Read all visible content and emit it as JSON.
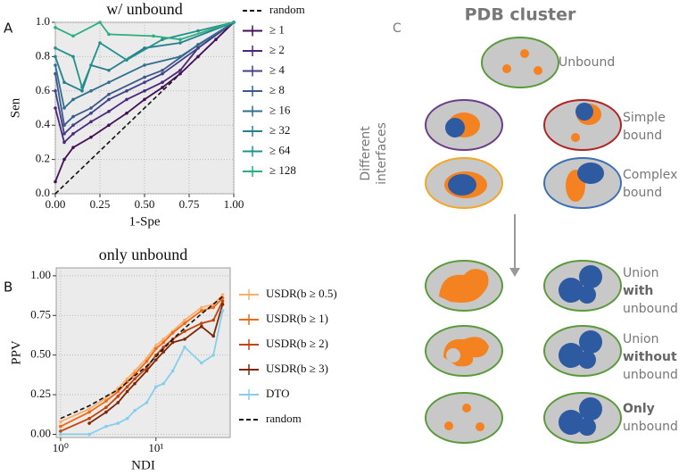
{
  "chart_data": [
    {
      "type": "line",
      "panel_label": "A",
      "title": "w/ unbound",
      "xlabel": "1-Spe",
      "ylabel": "Sen",
      "grid": true,
      "xlim": [
        0,
        1
      ],
      "ylim": [
        0,
        1
      ],
      "xticks": [
        {
          "value": 0,
          "label": "0.00"
        },
        {
          "value": 0.25,
          "label": "0.25"
        },
        {
          "value": 0.5,
          "label": "0.50"
        },
        {
          "value": 0.75,
          "label": "0.75"
        },
        {
          "value": 1,
          "label": "1.00"
        }
      ],
      "yticks": [
        {
          "value": 0,
          "label": "0.0"
        },
        0.2,
        0.4,
        0.6,
        0.8,
        {
          "value": 1,
          "label": "1.0"
        }
      ],
      "series": [
        {
          "name": "random",
          "color": "#111111",
          "dash": true,
          "x": [
            0,
            1
          ],
          "values": [
            0,
            1
          ]
        },
        {
          "name": "≥ 1",
          "color": "#440f56",
          "x": [
            0,
            0.05,
            0.1,
            0.2,
            0.3,
            0.4,
            0.5,
            0.6,
            0.7,
            0.8,
            0.9,
            1
          ],
          "values": [
            0.07,
            0.2,
            0.27,
            0.33,
            0.4,
            0.47,
            0.55,
            0.62,
            0.7,
            0.8,
            0.9,
            1
          ]
        },
        {
          "name": "≥ 2",
          "color": "#48287a",
          "x": [
            0,
            0.05,
            0.1,
            0.2,
            0.3,
            0.4,
            0.5,
            0.6,
            0.7,
            0.8,
            1
          ],
          "values": [
            0.5,
            0.3,
            0.35,
            0.42,
            0.48,
            0.55,
            0.6,
            0.65,
            0.72,
            0.85,
            1
          ]
        },
        {
          "name": "≥ 4",
          "color": "#433f86",
          "x": [
            0,
            0.05,
            0.1,
            0.2,
            0.3,
            0.4,
            0.5,
            0.6,
            0.8,
            1
          ],
          "values": [
            0.6,
            0.35,
            0.4,
            0.47,
            0.55,
            0.6,
            0.65,
            0.7,
            0.85,
            1
          ]
        },
        {
          "name": "≥ 8",
          "color": "#3a5a8c",
          "x": [
            0,
            0.05,
            0.1,
            0.2,
            0.3,
            0.5,
            0.6,
            0.8,
            1
          ],
          "values": [
            0.7,
            0.4,
            0.45,
            0.5,
            0.58,
            0.68,
            0.72,
            0.87,
            1
          ]
        },
        {
          "name": "≥ 16",
          "color": "#2f6e8e",
          "x": [
            0,
            0.05,
            0.1,
            0.2,
            0.3,
            0.5,
            0.7,
            1
          ],
          "values": [
            0.75,
            0.5,
            0.55,
            0.6,
            0.65,
            0.75,
            0.8,
            1
          ]
        },
        {
          "name": "≥ 32",
          "color": "#277f8e",
          "x": [
            0,
            0.05,
            0.15,
            0.2,
            0.3,
            0.5,
            0.7,
            1
          ],
          "values": [
            0.8,
            0.65,
            0.6,
            0.75,
            0.72,
            0.85,
            0.88,
            1
          ]
        },
        {
          "name": "≥ 64",
          "color": "#20928c",
          "x": [
            0,
            0.1,
            0.15,
            0.25,
            0.4,
            0.6,
            0.8,
            1
          ],
          "values": [
            0.85,
            0.8,
            0.62,
            0.88,
            0.78,
            0.9,
            0.95,
            1
          ]
        },
        {
          "name": "≥ 128",
          "color": "#29af7f",
          "x": [
            0,
            0.1,
            0.25,
            0.3,
            0.55,
            0.7,
            1
          ],
          "values": [
            0.97,
            0.92,
            1,
            0.93,
            0.92,
            0.9,
            1
          ]
        }
      ]
    },
    {
      "type": "line",
      "panel_label": "B",
      "title": "only unbound",
      "xlabel": "NDI",
      "ylabel": "PPV",
      "grid": true,
      "logx": true,
      "xlim": [
        0.9,
        60
      ],
      "ylim": [
        -0.02,
        1.05
      ],
      "xticks": [
        {
          "value": 1,
          "label": "10⁰"
        },
        {
          "value": 10,
          "label": "10¹"
        }
      ],
      "yticks": [
        {
          "value": 0,
          "label": "0.00"
        },
        0.25,
        {
          "value": 0.5,
          "label": "0.50"
        },
        0.75,
        {
          "value": 1,
          "label": "1.00"
        }
      ],
      "x": [
        1,
        2,
        3,
        4,
        5,
        6,
        8,
        10,
        12,
        15,
        20,
        30,
        40,
        50
      ],
      "series": [
        {
          "name": "USDR(b ≥ 0.5)",
          "color": "#fdae6b",
          "values": [
            0.08,
            0.16,
            0.23,
            0.29,
            0.35,
            0.4,
            0.48,
            0.56,
            0.6,
            0.65,
            0.72,
            0.8,
            0.82,
            0.88
          ]
        },
        {
          "name": "USDR(b ≥ 1)",
          "color": "#f16913",
          "values": [
            0.05,
            0.14,
            0.21,
            0.27,
            0.33,
            0.38,
            0.46,
            0.54,
            0.58,
            0.64,
            0.7,
            0.78,
            0.8,
            0.86
          ]
        },
        {
          "name": "USDR(b ≥ 2)",
          "color": "#c4420c",
          "values": [
            0.02,
            0.1,
            0.17,
            0.24,
            0.3,
            0.35,
            0.42,
            0.5,
            0.55,
            0.6,
            0.65,
            0.7,
            0.72,
            0.84
          ]
        },
        {
          "name": "USDR(b ≥ 3)",
          "color": "#7f2704",
          "values": [
            null,
            0.07,
            0.14,
            0.2,
            0.27,
            0.32,
            0.4,
            0.47,
            0.52,
            0.58,
            0.6,
            0.68,
            0.62,
            0.82
          ]
        },
        {
          "name": "DTO",
          "color": "#87ceeb",
          "values": [
            0,
            0,
            0.05,
            0.07,
            0.1,
            0.15,
            0.2,
            0.3,
            0.32,
            0.4,
            0.55,
            0.45,
            0.5,
            0.78
          ]
        },
        {
          "name": "random",
          "color": "#111111",
          "dash": true,
          "values": [
            0.1,
            0.18,
            0.24,
            0.28,
            0.33,
            0.37,
            0.43,
            0.49,
            0.54,
            0.6,
            0.67,
            0.76,
            0.82,
            0.87
          ]
        }
      ]
    }
  ],
  "panel_c": {
    "label": "C",
    "title": "PDB cluster",
    "side_label": [
      "Different",
      "interfaces"
    ],
    "unbound": "Unbound",
    "simple_bound": [
      "Simple",
      "bound"
    ],
    "complex_bound": [
      "Complex",
      "bound"
    ],
    "union_with": [
      "Union",
      "with",
      "unbound"
    ],
    "union_without": [
      "Union",
      "without",
      "unbound"
    ],
    "only_unbound": [
      "Only",
      "unbound"
    ]
  }
}
